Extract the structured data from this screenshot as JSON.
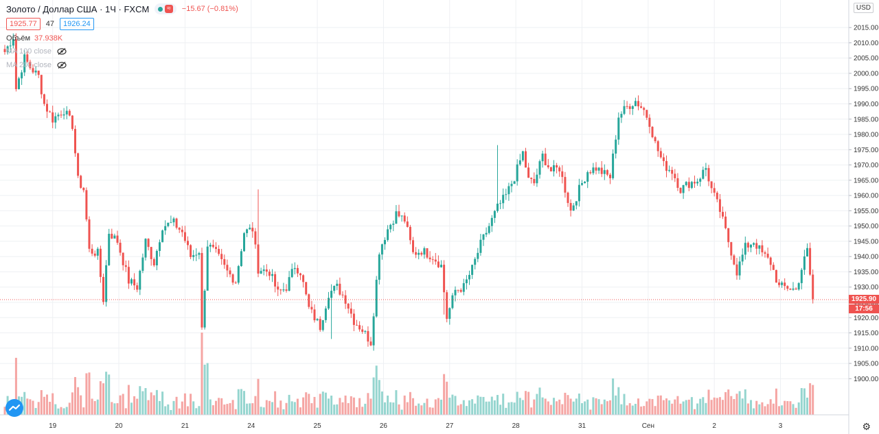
{
  "header": {
    "symbol": "Золото / Доллар США · 1Ч · FXCM",
    "change": "−15.67 (−0.81%)",
    "bid": "1925.77",
    "spread": "47",
    "ask": "1926.24",
    "volume_label": "Объём",
    "volume_value": "37.938K",
    "ma1_label": "MA 100 close",
    "ma2_label": "MA 200 close",
    "status_icon": "≈"
  },
  "currency_label": "USD",
  "last_price_label": "1925.90",
  "countdown_label": "17:56",
  "colors": {
    "up": "#26a69a",
    "down": "#ef5350",
    "up_volume": "#95d5cf",
    "down_volume": "#f5a5a3",
    "grid": "#eef0f3"
  },
  "chart_data": {
    "type": "candlestick",
    "interval": "1 hour",
    "ylim": [
      1887.5,
      2022
    ],
    "y_ticks": [
      "2015.00",
      "2010.00",
      "2005.00",
      "2000.00",
      "1995.00",
      "1990.00",
      "1985.00",
      "1980.00",
      "1975.00",
      "1970.00",
      "1965.00",
      "1960.00",
      "1955.00",
      "1950.00",
      "1945.00",
      "1940.00",
      "1935.00",
      "1930.00",
      "1925.00",
      "1920.00",
      "1915.00",
      "1910.00",
      "1905.00",
      "1900.00"
    ],
    "top_tick": "2",
    "x_tick_labels": [
      "19",
      "20",
      "21",
      "24",
      "25",
      "26",
      "27",
      "28",
      "31",
      "Сен",
      "2",
      "3"
    ],
    "last_price": 1925.9,
    "anchors": [
      [
        0,
        2007
      ],
      [
        3,
        2012
      ],
      [
        4,
        1995
      ],
      [
        7,
        2005
      ],
      [
        9,
        2002
      ],
      [
        12,
        1999
      ],
      [
        14,
        1990
      ],
      [
        17,
        1985
      ],
      [
        21,
        1988
      ],
      [
        24,
        1983
      ],
      [
        26,
        1965
      ],
      [
        28,
        1962
      ],
      [
        30,
        1942
      ],
      [
        33,
        1941
      ],
      [
        35,
        1926
      ],
      [
        37,
        1948
      ],
      [
        40,
        1945
      ],
      [
        44,
        1932
      ],
      [
        47,
        1930
      ],
      [
        50,
        1945
      ],
      [
        53,
        1938
      ],
      [
        56,
        1950
      ],
      [
        60,
        1951
      ],
      [
        63,
        1948
      ],
      [
        66,
        1940
      ],
      [
        69,
        1942
      ],
      [
        70,
        1916
      ],
      [
        72,
        1944
      ],
      [
        75,
        1941
      ],
      [
        79,
        1935
      ],
      [
        82,
        1932
      ],
      [
        85,
        1948
      ],
      [
        88,
        1949
      ],
      [
        90,
        1936
      ],
      [
        94,
        1935
      ],
      [
        97,
        1928
      ],
      [
        100,
        1930
      ],
      [
        103,
        1937
      ],
      [
        105,
        1935
      ],
      [
        108,
        1923
      ],
      [
        112,
        1917
      ],
      [
        115,
        1928
      ],
      [
        118,
        1930
      ],
      [
        121,
        1926
      ],
      [
        124,
        1919
      ],
      [
        127,
        1916
      ],
      [
        130,
        1912
      ],
      [
        133,
        1942
      ],
      [
        136,
        1949
      ],
      [
        139,
        1954
      ],
      [
        142,
        1952
      ],
      [
        145,
        1941
      ],
      [
        148,
        1942
      ],
      [
        152,
        1940
      ],
      [
        155,
        1937
      ],
      [
        157,
        1920
      ],
      [
        160,
        1929
      ],
      [
        163,
        1930
      ],
      [
        166,
        1936
      ],
      [
        169,
        1944
      ],
      [
        172,
        1950
      ],
      [
        175,
        1956
      ],
      [
        178,
        1960
      ],
      [
        181,
        1966
      ],
      [
        184,
        1974
      ],
      [
        186,
        1965
      ],
      [
        188,
        1964
      ],
      [
        191,
        1973
      ],
      [
        194,
        1968
      ],
      [
        197,
        1969
      ],
      [
        201,
        1955
      ],
      [
        204,
        1962
      ],
      [
        207,
        1968
      ],
      [
        210,
        1969
      ],
      [
        213,
        1967
      ],
      [
        215,
        1966
      ],
      [
        218,
        1986
      ],
      [
        221,
        1989
      ],
      [
        224,
        1991
      ],
      [
        227,
        1988
      ],
      [
        229,
        1984
      ],
      [
        231,
        1977
      ],
      [
        234,
        1970
      ],
      [
        237,
        1968
      ],
      [
        240,
        1962
      ],
      [
        243,
        1964
      ],
      [
        246,
        1965
      ],
      [
        249,
        1969
      ],
      [
        251,
        1962
      ],
      [
        254,
        1955
      ],
      [
        257,
        1945
      ],
      [
        260,
        1935
      ],
      [
        263,
        1943
      ],
      [
        266,
        1945
      ],
      [
        269,
        1941
      ],
      [
        272,
        1938
      ],
      [
        275,
        1930
      ],
      [
        278,
        1930
      ],
      [
        281,
        1929
      ],
      [
        283,
        1936
      ],
      [
        285,
        1942
      ],
      [
        287,
        1926
      ]
    ],
    "spikes": [
      [
        175,
        1976.5
      ],
      [
        156,
        1921
      ],
      [
        90,
        1962
      ],
      [
        116,
        1913
      ]
    ]
  }
}
